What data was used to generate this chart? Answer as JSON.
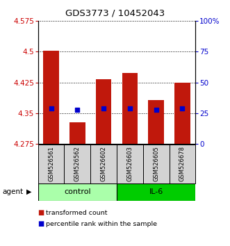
{
  "title": "GDS3773 / 10452043",
  "samples": [
    "GSM526561",
    "GSM526562",
    "GSM526602",
    "GSM526603",
    "GSM526605",
    "GSM526678"
  ],
  "groups": [
    "control",
    "control",
    "control",
    "IL-6",
    "IL-6",
    "IL-6"
  ],
  "bar_tops": [
    4.502,
    4.328,
    4.432,
    4.448,
    4.382,
    4.424
  ],
  "bar_bottoms": [
    4.275,
    4.275,
    4.275,
    4.275,
    4.275,
    4.275
  ],
  "blue_dots": [
    4.362,
    4.358,
    4.362,
    4.362,
    4.358,
    4.362
  ],
  "ylim_left": [
    4.275,
    4.575
  ],
  "ylim_right": [
    0,
    100
  ],
  "yticks_left": [
    4.275,
    4.35,
    4.425,
    4.5,
    4.575
  ],
  "yticks_right": [
    0,
    25,
    50,
    75,
    100
  ],
  "ytick_labels_left": [
    "4.275",
    "4.35",
    "4.425",
    "4.5",
    "4.575"
  ],
  "ytick_labels_right": [
    "0",
    "25",
    "50",
    "75",
    "100%"
  ],
  "bar_color": "#C0180C",
  "blue_color": "#0000CC",
  "control_color": "#AAFFAA",
  "il6_color": "#00CC00",
  "group_label_control": "control",
  "group_label_il6": "IL-6",
  "agent_label": "agent",
  "legend_bar_label": "transformed count",
  "legend_dot_label": "percentile rank within the sample",
  "bar_width": 0.6,
  "blue_dot_size": 20,
  "grid_color": "#000000"
}
